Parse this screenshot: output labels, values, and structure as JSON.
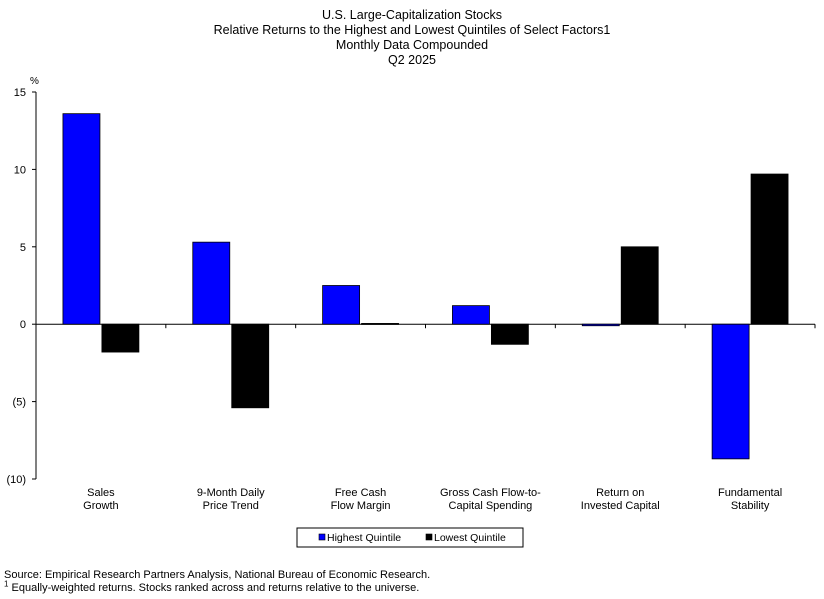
{
  "chart_data": {
    "type": "bar",
    "title": "U.S. Large-Capitalization Stocks",
    "subtitle_lines": [
      "Relative Returns to the Highest and Lowest Quintiles of Select Factors1",
      "Monthly Data Compounded",
      "Q2 2025"
    ],
    "ylabel": "%",
    "ylim": [
      -10,
      15
    ],
    "yticks": [
      15,
      10,
      5,
      0,
      -5,
      -10
    ],
    "ytick_labels": [
      "15",
      "10",
      "5",
      "0",
      "(5)",
      "(10)"
    ],
    "categories": [
      [
        "Sales",
        "Growth"
      ],
      [
        "9-Month Daily",
        "Price Trend"
      ],
      [
        "Free Cash",
        "Flow Margin"
      ],
      [
        "Gross Cash Flow-to-",
        "Capital Spending"
      ],
      [
        "Return on",
        "Invested Capital"
      ],
      [
        "Fundamental",
        "Stability"
      ]
    ],
    "series": [
      {
        "name": "Highest Quintile",
        "color": "#0000ff",
        "values": [
          13.6,
          5.3,
          2.5,
          1.2,
          -0.1,
          -8.7
        ]
      },
      {
        "name": "Lowest Quintile",
        "color": "#000000",
        "values": [
          -1.8,
          -5.4,
          0.05,
          -1.3,
          5.0,
          9.7
        ]
      }
    ],
    "grid": false,
    "legend_position": "bottom-center"
  },
  "footnotes": {
    "source": "Source: Empirical Research Partners Analysis, National Bureau of Economic Research.",
    "note_marker": "1",
    "note_text": " Equally-weighted returns.  Stocks ranked across and returns relative to the universe."
  }
}
